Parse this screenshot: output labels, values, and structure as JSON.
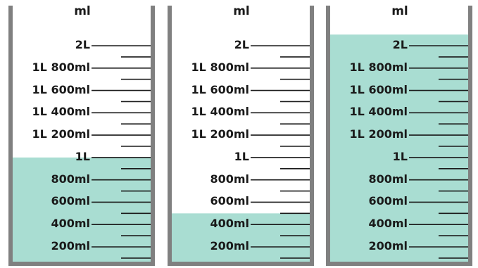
{
  "unit_label": "ml",
  "scale_labels": [
    "2L",
    "1L 800ml",
    "1L 600ml",
    "1L 400ml",
    "1L 200ml",
    "1L",
    "800ml",
    "600ml",
    "400ml",
    "200ml"
  ],
  "beakers": [
    {
      "fill_ml": 1000
    },
    {
      "fill_ml": 500
    },
    {
      "fill_ml": 2100
    }
  ],
  "colors": {
    "liquid": "#a9ddd2",
    "wall": "#808080",
    "line": "#1a1a1a"
  }
}
